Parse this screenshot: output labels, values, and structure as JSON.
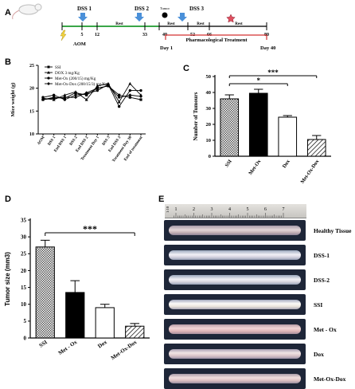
{
  "panels": {
    "a": "A",
    "b": "B",
    "c": "C",
    "d": "D",
    "e": "E"
  },
  "timeline": {
    "dss": [
      "DSS 1",
      "DSS 2",
      "DSS 3"
    ],
    "day_ticks": [
      "1",
      "5",
      "12",
      "33",
      "40",
      "52",
      "66",
      "80"
    ],
    "rest_labels": [
      "Rest",
      "Rest",
      "Rest",
      "Rest"
    ],
    "tumor_label": "Tumor",
    "aom_label": "AOM",
    "treatment_label": "Pharmacological Treatment",
    "day_start": "Day 1",
    "day_end": "Day 40"
  },
  "chart_b": {
    "type": "line",
    "ylabel": "Mice weight (g)",
    "categories": [
      "AOM",
      "DSS 1",
      "End DSS 1",
      "DSS 2",
      "End DSS 2",
      "Treatment Day 1",
      "DSS 3",
      "End DSS 3",
      "Treatment Day 30",
      "End of treatment"
    ],
    "ylim": [
      10,
      25
    ],
    "yticks": [
      "10",
      "15",
      "20",
      "25"
    ],
    "series": [
      {
        "name": "SSI",
        "values": [
          17.5,
          18.0,
          17.8,
          19.0,
          18.5,
          20.0,
          20.5,
          18.5,
          18.0,
          17.5
        ]
      },
      {
        "name": "DOX 3 mg/Kg",
        "values": [
          17.8,
          17.5,
          18.5,
          19.2,
          17.5,
          20.5,
          21.0,
          17.0,
          21.0,
          18.5
        ]
      },
      {
        "name": "Met-Ox (200/15) mg/Kg",
        "values": [
          18.0,
          18.5,
          17.5,
          18.5,
          18.8,
          19.5,
          20.8,
          16.0,
          19.5,
          19.5
        ]
      },
      {
        "name": "Met-Ox-Dox (200/15/3) mg/Kg",
        "values": [
          17.5,
          17.8,
          18.0,
          18.0,
          19.0,
          20.0,
          20.5,
          18.0,
          18.5,
          18.2
        ]
      }
    ]
  },
  "chart_c": {
    "type": "bar",
    "ylabel": "Number of Tumours",
    "categories": [
      "SSI",
      "Met-Ox",
      "Dox",
      "Met-Ox-Dox"
    ],
    "values": [
      36,
      39.5,
      24.5,
      10.5
    ],
    "errors": [
      2.5,
      2.5,
      1,
      2.5
    ],
    "ylim": [
      0,
      50
    ],
    "yticks": [
      "0",
      "10",
      "20",
      "30",
      "40",
      "50"
    ],
    "sig_star": "*",
    "sig_triple": "***"
  },
  "chart_d": {
    "type": "bar",
    "ylabel": "Tumor size (mm3)",
    "categories": [
      "SSI",
      "Met - Ox",
      "Dox",
      "Met-Ox-Dox"
    ],
    "values": [
      27,
      13.5,
      9,
      3.5
    ],
    "errors": [
      2,
      3.5,
      1,
      0.8
    ],
    "ylim": [
      0,
      35
    ],
    "yticks": [
      "0",
      "5",
      "10",
      "15",
      "20",
      "25",
      "30",
      "35"
    ],
    "sig_triple": "***"
  },
  "ruler": {
    "ticks": [
      "1",
      "2",
      "3",
      "4",
      "5",
      "6",
      "7"
    ],
    "scale": "1:10"
  },
  "photos": [
    "Healthy Tissue",
    "DSS-1",
    "DSS-2",
    "SSI",
    "Met - Ox",
    "Dox",
    "Met-Ox-Dox"
  ]
}
